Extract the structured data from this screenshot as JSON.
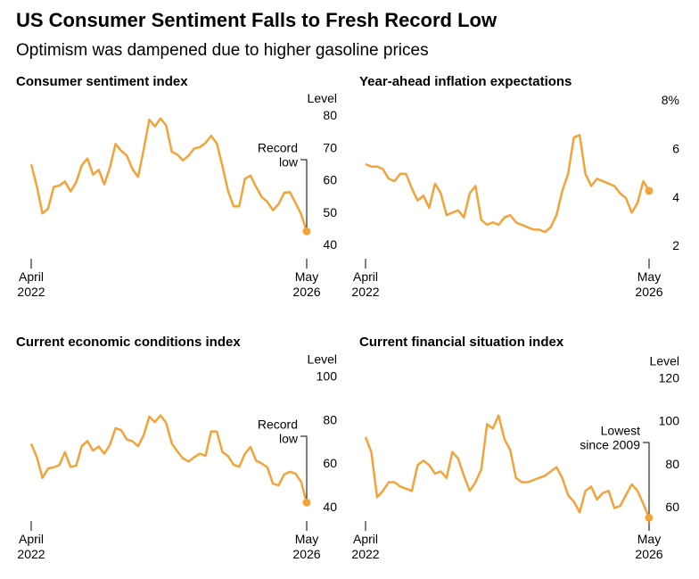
{
  "title": "US Consumer Sentiment Falls to Fresh Record Low",
  "subtitle": "Optimism was dampened due to higher gasoline prices",
  "chart_data": [
    {
      "type": "line",
      "title": "Consumer sentiment index",
      "y_label": "Level",
      "color": "#f2a33a",
      "categories": [
        "April 2022",
        null,
        null,
        null,
        null,
        null,
        null,
        null,
        null,
        null,
        null,
        null,
        null,
        null,
        null,
        null,
        null,
        null,
        null,
        null,
        null,
        null,
        null,
        null,
        null,
        null,
        null,
        null,
        null,
        null,
        null,
        null,
        null,
        null,
        null,
        null,
        null,
        null,
        null,
        null,
        null,
        null,
        null,
        null,
        null,
        null,
        null,
        null,
        null,
        "May 2026"
      ],
      "values": [
        65.2,
        58.4,
        50.0,
        51.5,
        58.2,
        58.6,
        59.9,
        56.8,
        59.7,
        64.9,
        67.0,
        62.0,
        63.5,
        59.0,
        64.2,
        71.5,
        69.4,
        67.9,
        63.8,
        61.3,
        69.7,
        79.0,
        76.9,
        79.4,
        77.2,
        69.1,
        68.2,
        66.4,
        67.9,
        70.1,
        70.5,
        71.8,
        74.0,
        71.7,
        64.7,
        57.0,
        52.2,
        52.2,
        60.7,
        61.7,
        58.2,
        55.1,
        53.6,
        51.0,
        52.9,
        56.4,
        56.6,
        53.3,
        49.8,
        44.5
      ],
      "ylim": [
        36,
        84
      ],
      "yticks": [
        40,
        50,
        60,
        70,
        80
      ],
      "annotation": [
        "Record",
        "low"
      ]
    },
    {
      "type": "line",
      "title": "Year-ahead inflation expectations",
      "color": "#f2a33a",
      "categories": [
        "April 2022",
        null,
        null,
        null,
        null,
        null,
        null,
        null,
        null,
        null,
        null,
        null,
        null,
        null,
        null,
        null,
        null,
        null,
        null,
        null,
        null,
        null,
        null,
        null,
        null,
        null,
        null,
        null,
        null,
        null,
        null,
        null,
        null,
        null,
        null,
        null,
        null,
        null,
        null,
        null,
        null,
        null,
        null,
        null,
        null,
        null,
        null,
        null,
        null,
        "May 2026"
      ],
      "values": [
        5.4,
        5.3,
        5.3,
        5.2,
        4.8,
        4.7,
        5.0,
        5.0,
        4.4,
        3.9,
        4.1,
        3.6,
        4.6,
        4.2,
        3.3,
        3.4,
        3.5,
        3.2,
        4.2,
        4.5,
        3.1,
        2.9,
        3.0,
        2.9,
        3.2,
        3.3,
        3.0,
        2.9,
        2.8,
        2.7,
        2.7,
        2.6,
        2.8,
        3.3,
        4.3,
        5.0,
        6.5,
        6.6,
        5.0,
        4.5,
        4.8,
        4.7,
        4.6,
        4.5,
        4.2,
        4.0,
        3.4,
        3.8,
        4.7,
        4.3
      ],
      "ylim": [
        1.5,
        8.2
      ],
      "yticks": [
        2,
        4,
        6,
        {
          "value": 8,
          "label": "8%"
        }
      ]
    },
    {
      "type": "line",
      "title": "Current economic conditions index",
      "y_label": "Level",
      "color": "#f2a33a",
      "categories": [
        "April 2022",
        null,
        null,
        null,
        null,
        null,
        null,
        null,
        null,
        null,
        null,
        null,
        null,
        null,
        null,
        null,
        null,
        null,
        null,
        null,
        null,
        null,
        null,
        null,
        null,
        null,
        null,
        null,
        null,
        null,
        null,
        null,
        null,
        null,
        null,
        null,
        null,
        null,
        null,
        null,
        null,
        null,
        null,
        null,
        null,
        null,
        null,
        null,
        null,
        "May 2026"
      ],
      "values": [
        69.4,
        63.3,
        53.8,
        58.1,
        58.6,
        59.7,
        65.6,
        58.8,
        59.4,
        68.4,
        70.7,
        66.3,
        68.2,
        64.9,
        69.0,
        76.6,
        75.7,
        71.4,
        70.6,
        68.3,
        73.3,
        81.9,
        79.4,
        82.5,
        79.0,
        69.6,
        65.9,
        62.7,
        61.3,
        63.3,
        64.9,
        63.9,
        75.1,
        75.1,
        65.7,
        63.8,
        59.8,
        58.9,
        64.8,
        68.0,
        61.7,
        60.4,
        58.6,
        51.1,
        50.4,
        55.4,
        56.6,
        55.8,
        52.0,
        42.5
      ],
      "ylim": [
        34,
        104
      ],
      "yticks": [
        40,
        60,
        80,
        100
      ],
      "annotation": [
        "Record",
        "low"
      ]
    },
    {
      "type": "line",
      "title": "Current financial situation index",
      "y_label": "Level",
      "color": "#f2a33a",
      "categories": [
        "April 2022",
        null,
        null,
        null,
        null,
        null,
        null,
        null,
        null,
        null,
        null,
        null,
        null,
        null,
        null,
        null,
        null,
        null,
        null,
        null,
        null,
        null,
        null,
        null,
        null,
        null,
        null,
        null,
        null,
        null,
        null,
        null,
        null,
        null,
        null,
        null,
        null,
        null,
        null,
        null,
        null,
        null,
        null,
        null,
        null,
        null,
        null,
        null,
        null,
        "May 2026"
      ],
      "values": [
        93,
        86,
        65,
        68,
        72,
        72,
        70,
        69,
        68,
        80,
        82,
        80,
        76,
        77,
        74,
        86,
        83,
        75,
        68,
        72,
        78,
        99,
        97,
        103,
        92,
        87,
        74,
        72,
        72,
        73,
        74,
        75,
        77,
        79,
        74,
        66,
        63,
        58,
        68,
        70,
        64,
        67,
        68,
        60,
        61,
        66,
        71,
        68,
        62,
        55.5
      ],
      "ylim": [
        54,
        124
      ],
      "yticks": [
        60,
        80,
        100,
        120
      ],
      "annotation": [
        "Lowest",
        "since 2009"
      ]
    }
  ]
}
